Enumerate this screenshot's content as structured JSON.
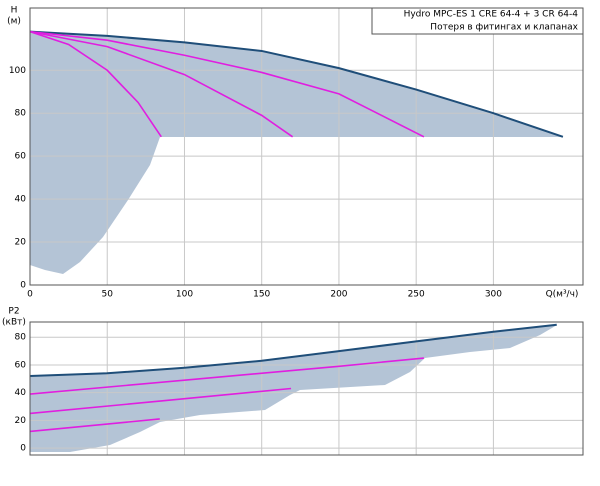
{
  "chart_data": [
    {
      "type": "line",
      "title": "Hydro MPC-ES 1 CRE 64-4  +  3 CR 64-4",
      "annotation": "Потеря в фитингах и клапанах",
      "y_label": "H",
      "y_unit": "(м)",
      "x_label": "Q(м³/ч)",
      "xlim": [
        0,
        358
      ],
      "ylim": [
        0,
        129
      ],
      "xticks": [
        0,
        50,
        100,
        150,
        200,
        250,
        300
      ],
      "yticks": [
        0,
        20,
        40,
        60,
        80,
        100
      ],
      "grid": true,
      "series": [
        {
          "color": "#1f4e79",
          "x": [
            0,
            50,
            100,
            150,
            200,
            250,
            300,
            345
          ],
          "values": [
            118,
            116,
            113,
            109,
            101,
            91,
            80,
            69
          ]
        },
        {
          "color": "#e01ee0",
          "x": [
            0,
            50,
            100,
            150,
            200,
            255
          ],
          "values": [
            118,
            114,
            107,
            99,
            89,
            69
          ]
        },
        {
          "color": "#e01ee0",
          "x": [
            0,
            50,
            100,
            150,
            170
          ],
          "values": [
            118,
            111,
            98,
            79,
            69
          ]
        },
        {
          "color": "#e01ee0",
          "x": [
            0,
            25,
            50,
            70,
            85
          ],
          "values": [
            118,
            112,
            100,
            85,
            69
          ]
        }
      ]
    },
    {
      "type": "line",
      "y_label": "P2",
      "y_unit": "(кВт)",
      "xlim": [
        0,
        358
      ],
      "ylim": [
        -5,
        91
      ],
      "yticks": [
        0,
        20,
        40,
        60,
        80
      ],
      "grid": true,
      "series": [
        {
          "color": "#1f4e79",
          "x": [
            0,
            50,
            100,
            150,
            200,
            250,
            300,
            341
          ],
          "values": [
            52,
            54,
            58,
            63,
            70,
            77,
            84,
            89
          ]
        },
        {
          "color": "#e01ee0",
          "x": [
            0,
            100,
            200,
            255
          ],
          "values": [
            39,
            49,
            59,
            65
          ]
        },
        {
          "color": "#e01ee0",
          "x": [
            0,
            85,
            169
          ],
          "values": [
            25,
            34,
            43
          ]
        },
        {
          "color": "#e01ee0",
          "x": [
            0,
            84
          ],
          "values": [
            12,
            21
          ]
        }
      ]
    }
  ]
}
